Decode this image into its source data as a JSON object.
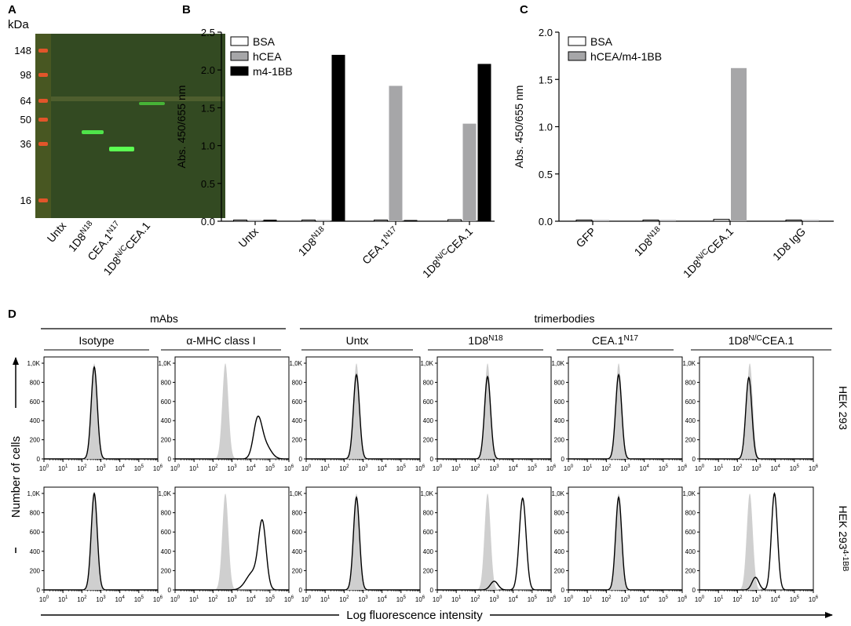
{
  "panels": {
    "A": {
      "letter": "A",
      "unit": "kDa",
      "markers": [
        "148",
        "98",
        "64",
        "50",
        "36",
        "16"
      ],
      "lanes": [
        {
          "base": "Untx",
          "sup": ""
        },
        {
          "base": "1D8",
          "sup": "N18"
        },
        {
          "base": "CEA.1",
          "sup": "N17"
        },
        {
          "base": "1D8",
          "sup": "N/C",
          "tail": "CEA.1"
        }
      ]
    },
    "B": {
      "letter": "B"
    },
    "C": {
      "letter": "C"
    },
    "D": {
      "letter": "D",
      "group_mabs": "mAbs",
      "group_trimerbodies": "trimerbodies",
      "columns": [
        {
          "base": "Isotype",
          "sup": ""
        },
        {
          "base": "α-MHC class I",
          "sup": ""
        },
        {
          "base": "Untx",
          "sup": ""
        },
        {
          "base": "1D8",
          "sup": "N18"
        },
        {
          "base": "CEA.1",
          "sup": "N17"
        },
        {
          "base": "1D8",
          "sup": "N/C",
          "tail": "CEA.1"
        }
      ],
      "rows": [
        {
          "base": "HEK 293",
          "sup": ""
        },
        {
          "base": "HEK 293",
          "sup": "4-1BB"
        }
      ],
      "y_ticks": [
        "0",
        "200",
        "400",
        "600",
        "800",
        "1,0K"
      ],
      "x_ticks": [
        "0",
        "1",
        "2",
        "3",
        "4",
        "5",
        "6"
      ],
      "y_axis_label": "Number of cells",
      "x_axis_label": "Log fluorescence intensity"
    }
  },
  "chart_data": [
    {
      "panel": "B",
      "type": "bar",
      "ylabel": "Abs. 450/655 nm",
      "ylim": [
        0,
        2.5
      ],
      "yticks": [
        "0.0",
        "0.5",
        "1.0",
        "1.5",
        "2.0",
        "2.5"
      ],
      "categories": [
        {
          "base": "Untx",
          "sup": ""
        },
        {
          "base": "1D8",
          "sup": "N18"
        },
        {
          "base": "CEA.1",
          "sup": "N17"
        },
        {
          "base": "1D8",
          "sup": "N/C",
          "tail": "CEA.1"
        }
      ],
      "legend_position": "top-left",
      "series": [
        {
          "name": "BSA",
          "color": "#ffffff",
          "values": [
            0.01,
            0.01,
            0.01,
            0.02
          ]
        },
        {
          "name": "hCEA",
          "color": "#a6a6a8",
          "values": [
            0.01,
            0.01,
            1.79,
            1.29
          ]
        },
        {
          "name": "m4-1BB",
          "color": "#000000",
          "values": [
            0.02,
            2.2,
            0.01,
            2.08
          ]
        }
      ]
    },
    {
      "panel": "C",
      "type": "bar",
      "ylabel": "Abs. 450/655 nm",
      "ylim": [
        0,
        2.0
      ],
      "yticks": [
        "0.0",
        "0.5",
        "1.0",
        "1.5",
        "2.0"
      ],
      "categories": [
        {
          "base": "GFP",
          "sup": ""
        },
        {
          "base": "1D8",
          "sup": "N18"
        },
        {
          "base": "1D8",
          "sup": "N/C",
          "tail": "CEA.1"
        },
        {
          "base": "1D8 IgG",
          "sup": ""
        }
      ],
      "legend_position": "top-left",
      "series": [
        {
          "name": "BSA",
          "color": "#ffffff",
          "values": [
            0.01,
            0.01,
            0.02,
            0.01
          ]
        },
        {
          "name": "hCEA/m4-1BB",
          "color": "#a6a6a8",
          "values": [
            0.0,
            0.0,
            1.62,
            0.0
          ]
        }
      ]
    },
    {
      "panel": "D",
      "type": "area",
      "description_of_units": "x: log10 fluorescence; y: cell count",
      "x_range_log10": [
        0,
        6
      ],
      "y_range": [
        0,
        1000
      ],
      "shaded_color": "#cfcfcf",
      "histograms": [
        {
          "row": 0,
          "col": 0,
          "shaded": [
            {
              "mu": 2.65,
              "sd": 0.16,
              "h": 1000
            }
          ],
          "line": [
            {
              "mu": 2.65,
              "sd": 0.16,
              "h": 960
            }
          ]
        },
        {
          "row": 0,
          "col": 1,
          "shaded": [
            {
              "mu": 2.65,
              "sd": 0.16,
              "h": 1000
            }
          ],
          "line": [
            {
              "mu": 4.35,
              "sd": 0.22,
              "h": 385
            },
            {
              "mu": 4.75,
              "sd": 0.3,
              "h": 140
            }
          ]
        },
        {
          "row": 0,
          "col": 2,
          "shaded": [
            {
              "mu": 2.65,
              "sd": 0.16,
              "h": 1000
            }
          ],
          "line": [
            {
              "mu": 2.65,
              "sd": 0.16,
              "h": 880
            }
          ]
        },
        {
          "row": 0,
          "col": 3,
          "shaded": [
            {
              "mu": 2.65,
              "sd": 0.16,
              "h": 1000
            }
          ],
          "line": [
            {
              "mu": 2.65,
              "sd": 0.16,
              "h": 860
            }
          ]
        },
        {
          "row": 0,
          "col": 4,
          "shaded": [
            {
              "mu": 2.65,
              "sd": 0.16,
              "h": 1000
            }
          ],
          "line": [
            {
              "mu": 2.65,
              "sd": 0.16,
              "h": 880
            }
          ]
        },
        {
          "row": 0,
          "col": 5,
          "shaded": [
            {
              "mu": 2.65,
              "sd": 0.16,
              "h": 1000
            }
          ],
          "line": [
            {
              "mu": 2.6,
              "sd": 0.16,
              "h": 850
            }
          ]
        },
        {
          "row": 1,
          "col": 0,
          "shaded": [
            {
              "mu": 2.65,
              "sd": 0.16,
              "h": 1000
            }
          ],
          "line": [
            {
              "mu": 2.65,
              "sd": 0.16,
              "h": 1000
            }
          ]
        },
        {
          "row": 1,
          "col": 1,
          "shaded": [
            {
              "mu": 2.65,
              "sd": 0.16,
              "h": 1000
            }
          ],
          "line": [
            {
              "mu": 4.6,
              "sd": 0.2,
              "h": 660
            },
            {
              "mu": 4.1,
              "sd": 0.35,
              "h": 180
            }
          ]
        },
        {
          "row": 1,
          "col": 2,
          "shaded": [
            {
              "mu": 2.65,
              "sd": 0.16,
              "h": 1000
            }
          ],
          "line": [
            {
              "mu": 2.65,
              "sd": 0.16,
              "h": 960
            }
          ]
        },
        {
          "row": 1,
          "col": 3,
          "shaded": [
            {
              "mu": 2.65,
              "sd": 0.16,
              "h": 1000
            }
          ],
          "line": [
            {
              "mu": 4.5,
              "sd": 0.18,
              "h": 950
            },
            {
              "mu": 3.0,
              "sd": 0.2,
              "h": 90
            }
          ]
        },
        {
          "row": 1,
          "col": 4,
          "shaded": [
            {
              "mu": 2.65,
              "sd": 0.16,
              "h": 1000
            }
          ],
          "line": [
            {
              "mu": 2.65,
              "sd": 0.16,
              "h": 960
            }
          ]
        },
        {
          "row": 1,
          "col": 5,
          "shaded": [
            {
              "mu": 2.65,
              "sd": 0.16,
              "h": 1000
            }
          ],
          "line": [
            {
              "mu": 3.95,
              "sd": 0.16,
              "h": 1000
            },
            {
              "mu": 2.95,
              "sd": 0.18,
              "h": 130
            }
          ]
        }
      ]
    }
  ]
}
